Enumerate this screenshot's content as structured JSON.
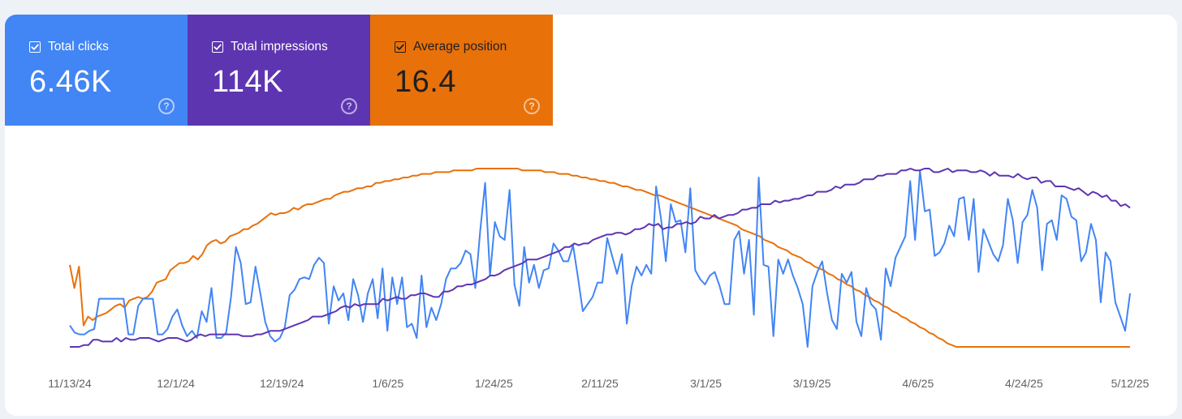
{
  "metrics": {
    "clicks": {
      "label": "Total clicks",
      "value": "6.46K",
      "color": "#4285f4"
    },
    "impressions": {
      "label": "Total impressions",
      "value": "114K",
      "color": "#5e35b1"
    },
    "position": {
      "label": "Average position",
      "value": "16.4",
      "color": "#e8710a"
    }
  },
  "icons": {
    "checkbox": "checkbox-checked-icon",
    "help": "help-circle-icon"
  },
  "chart_data": {
    "type": "line",
    "title": "",
    "xlabel": "",
    "ylabel": "",
    "grid": false,
    "x_range": [
      "11/13/24",
      "5/12/25"
    ],
    "tick_labels": [
      "11/13/24",
      "12/1/24",
      "12/19/24",
      "1/6/25",
      "1/24/25",
      "2/11/25",
      "3/1/25",
      "3/19/25",
      "4/6/25",
      "4/24/25",
      "5/12/25"
    ],
    "y_scale": "independent per series, normalized (no y axis shown)",
    "series": [
      {
        "name": "Total clicks",
        "color": "#4285f4",
        "values": [
          0.12,
          0.08,
          0.07,
          0.07,
          0.09,
          0.1,
          0.27,
          0.27,
          0.27,
          0.27,
          0.27,
          0.27,
          0.07,
          0.07,
          0.23,
          0.27,
          0.27,
          0.27,
          0.07,
          0.07,
          0.1,
          0.17,
          0.21,
          0.12,
          0.06,
          0.09,
          0.05,
          0.2,
          0.14,
          0.33,
          0.05,
          0.05,
          0.08,
          0.28,
          0.56,
          0.47,
          0.24,
          0.25,
          0.45,
          0.3,
          0.14,
          0.06,
          0.03,
          0.05,
          0.11,
          0.29,
          0.32,
          0.38,
          0.39,
          0.38,
          0.46,
          0.5,
          0.47,
          0.13,
          0.34,
          0.26,
          0.3,
          0.15,
          0.38,
          0.29,
          0.14,
          0.3,
          0.38,
          0.16,
          0.44,
          0.09,
          0.39,
          0.24,
          0.39,
          0.11,
          0.13,
          0.05,
          0.4,
          0.11,
          0.22,
          0.15,
          0.24,
          0.38,
          0.44,
          0.44,
          0.47,
          0.54,
          0.52,
          0.33,
          0.65,
          0.92,
          0.4,
          0.7,
          0.62,
          0.6,
          0.88,
          0.35,
          0.23,
          0.56,
          0.36,
          0.46,
          0.33,
          0.43,
          0.44,
          0.58,
          0.54,
          0.48,
          0.48,
          0.57,
          0.39,
          0.2,
          0.24,
          0.28,
          0.36,
          0.36,
          0.61,
          0.51,
          0.41,
          0.52,
          0.13,
          0.34,
          0.45,
          0.4,
          0.46,
          0.41,
          0.9,
          0.72,
          0.48,
          0.8,
          0.7,
          0.71,
          0.53,
          0.89,
          0.43,
          0.38,
          0.35,
          0.4,
          0.42,
          0.34,
          0.24,
          0.24,
          0.6,
          0.65,
          0.41,
          0.6,
          0.18,
          0.95,
          0.46,
          0.45,
          0.06,
          0.49,
          0.41,
          0.49,
          0.4,
          0.33,
          0.24,
          0.0,
          0.34,
          0.42,
          0.48,
          0.3,
          0.15,
          0.1,
          0.41,
          0.36,
          0.42,
          0.14,
          0.06,
          0.33,
          0.24,
          0.21,
          0.04,
          0.44,
          0.34,
          0.5,
          0.56,
          0.62,
          0.93,
          0.6,
          0.99,
          0.76,
          0.77,
          0.51,
          0.53,
          0.58,
          0.68,
          0.62,
          0.83,
          0.84,
          0.6,
          0.83,
          0.42,
          0.66,
          0.59,
          0.52,
          0.48,
          0.57,
          0.83,
          0.71,
          0.47,
          0.7,
          0.74,
          0.88,
          0.78,
          0.43,
          0.69,
          0.71,
          0.6,
          0.85,
          0.83,
          0.73,
          0.71,
          0.48,
          0.53,
          0.69,
          0.6,
          0.25,
          0.53,
          0.48,
          0.25,
          0.17,
          0.09,
          0.3
        ]
      },
      {
        "name": "Total impressions",
        "color": "#5e35b1",
        "values": [
          0.0,
          0.0,
          0.0,
          0.01,
          0.01,
          0.04,
          0.04,
          0.03,
          0.03,
          0.03,
          0.05,
          0.03,
          0.05,
          0.04,
          0.04,
          0.05,
          0.05,
          0.05,
          0.04,
          0.03,
          0.04,
          0.05,
          0.05,
          0.05,
          0.04,
          0.03,
          0.04,
          0.06,
          0.07,
          0.06,
          0.07,
          0.07,
          0.07,
          0.07,
          0.07,
          0.07,
          0.07,
          0.06,
          0.06,
          0.06,
          0.07,
          0.07,
          0.08,
          0.09,
          0.09,
          0.09,
          0.1,
          0.11,
          0.12,
          0.13,
          0.14,
          0.15,
          0.17,
          0.17,
          0.17,
          0.18,
          0.19,
          0.2,
          0.22,
          0.23,
          0.22,
          0.24,
          0.23,
          0.24,
          0.24,
          0.24,
          0.24,
          0.27,
          0.26,
          0.27,
          0.28,
          0.27,
          0.27,
          0.29,
          0.29,
          0.3,
          0.3,
          0.29,
          0.28,
          0.28,
          0.31,
          0.31,
          0.32,
          0.34,
          0.34,
          0.35,
          0.35,
          0.36,
          0.37,
          0.38,
          0.4,
          0.4,
          0.41,
          0.43,
          0.44,
          0.45,
          0.46,
          0.47,
          0.49,
          0.49,
          0.49,
          0.5,
          0.51,
          0.52,
          0.53,
          0.54,
          0.56,
          0.56,
          0.58,
          0.57,
          0.58,
          0.58,
          0.6,
          0.61,
          0.62,
          0.63,
          0.63,
          0.64,
          0.64,
          0.63,
          0.64,
          0.66,
          0.66,
          0.67,
          0.69,
          0.68,
          0.69,
          0.66,
          0.67,
          0.67,
          0.69,
          0.69,
          0.7,
          0.69,
          0.7,
          0.73,
          0.72,
          0.72,
          0.74,
          0.72,
          0.73,
          0.74,
          0.74,
          0.75,
          0.77,
          0.77,
          0.78,
          0.78,
          0.8,
          0.8,
          0.8,
          0.82,
          0.81,
          0.82,
          0.82,
          0.83,
          0.83,
          0.84,
          0.85,
          0.85,
          0.87,
          0.87,
          0.87,
          0.88,
          0.9,
          0.89,
          0.91,
          0.91,
          0.91,
          0.92,
          0.94,
          0.94,
          0.94,
          0.96,
          0.96,
          0.97,
          0.97,
          0.97,
          0.99,
          0.99,
          1.0,
          0.99,
          0.99,
          1.0,
          1.0,
          0.98,
          0.98,
          0.99,
          1.0,
          0.98,
          0.99,
          0.99,
          0.99,
          0.98,
          0.98,
          0.99,
          0.98,
          0.96,
          0.98,
          0.96,
          0.96,
          0.96,
          0.95,
          0.97,
          0.95,
          0.94,
          0.95,
          0.95,
          0.92,
          0.93,
          0.93,
          0.9,
          0.9,
          0.9,
          0.89,
          0.88,
          0.89,
          0.87,
          0.85,
          0.87,
          0.86,
          0.84,
          0.85,
          0.82,
          0.82,
          0.79,
          0.8,
          0.78
        ]
      },
      {
        "name": "Average position",
        "color": "#e8710a",
        "values": [
          0.46,
          0.33,
          0.45,
          0.12,
          0.17,
          0.15,
          0.17,
          0.18,
          0.19,
          0.21,
          0.23,
          0.24,
          0.22,
          0.26,
          0.27,
          0.28,
          0.27,
          0.28,
          0.31,
          0.36,
          0.37,
          0.38,
          0.43,
          0.45,
          0.47,
          0.47,
          0.48,
          0.51,
          0.49,
          0.52,
          0.57,
          0.59,
          0.6,
          0.58,
          0.59,
          0.62,
          0.63,
          0.64,
          0.66,
          0.66,
          0.68,
          0.69,
          0.71,
          0.73,
          0.75,
          0.74,
          0.75,
          0.75,
          0.76,
          0.78,
          0.77,
          0.79,
          0.8,
          0.8,
          0.81,
          0.82,
          0.83,
          0.83,
          0.85,
          0.86,
          0.87,
          0.87,
          0.88,
          0.89,
          0.89,
          0.9,
          0.9,
          0.92,
          0.92,
          0.93,
          0.93,
          0.94,
          0.94,
          0.95,
          0.95,
          0.96,
          0.96,
          0.97,
          0.97,
          0.97,
          0.98,
          0.98,
          0.98,
          0.98,
          0.99,
          0.99,
          0.99,
          0.99,
          0.99,
          1.0,
          1.0,
          1.0,
          1.0,
          1.0,
          1.0,
          1.0,
          1.0,
          1.0,
          1.0,
          0.99,
          0.99,
          0.99,
          0.99,
          0.99,
          0.98,
          0.98,
          0.98,
          0.97,
          0.97,
          0.97,
          0.96,
          0.96,
          0.95,
          0.95,
          0.94,
          0.94,
          0.93,
          0.93,
          0.92,
          0.92,
          0.91,
          0.9,
          0.9,
          0.89,
          0.88,
          0.88,
          0.87,
          0.86,
          0.85,
          0.85,
          0.84,
          0.83,
          0.82,
          0.81,
          0.8,
          0.79,
          0.78,
          0.77,
          0.76,
          0.75,
          0.74,
          0.73,
          0.72,
          0.71,
          0.7,
          0.69,
          0.68,
          0.66,
          0.65,
          0.64,
          0.63,
          0.62,
          0.6,
          0.59,
          0.58,
          0.56,
          0.55,
          0.54,
          0.52,
          0.51,
          0.5,
          0.48,
          0.47,
          0.45,
          0.44,
          0.43,
          0.41,
          0.4,
          0.38,
          0.37,
          0.35,
          0.34,
          0.32,
          0.31,
          0.29,
          0.28,
          0.26,
          0.25,
          0.23,
          0.22,
          0.2,
          0.19,
          0.17,
          0.16,
          0.14,
          0.13,
          0.11,
          0.1,
          0.08,
          0.07,
          0.05,
          0.04,
          0.02,
          0.01,
          0.0,
          0.0,
          0.0,
          0.0,
          0.0,
          0.0,
          0.0,
          0.0,
          0.0,
          0.0,
          0.0,
          0.0,
          0.0,
          0.0,
          0.0,
          0.0,
          0.0,
          0.0,
          0.0,
          0.0,
          0.0,
          0.0,
          0.0,
          0.0,
          0.0,
          0.0,
          0.0,
          0.0,
          0.0,
          0.0,
          0.0,
          0.0,
          0.0,
          0.0,
          0.0,
          0.0,
          0.0,
          0.0,
          0.0
        ]
      }
    ]
  }
}
